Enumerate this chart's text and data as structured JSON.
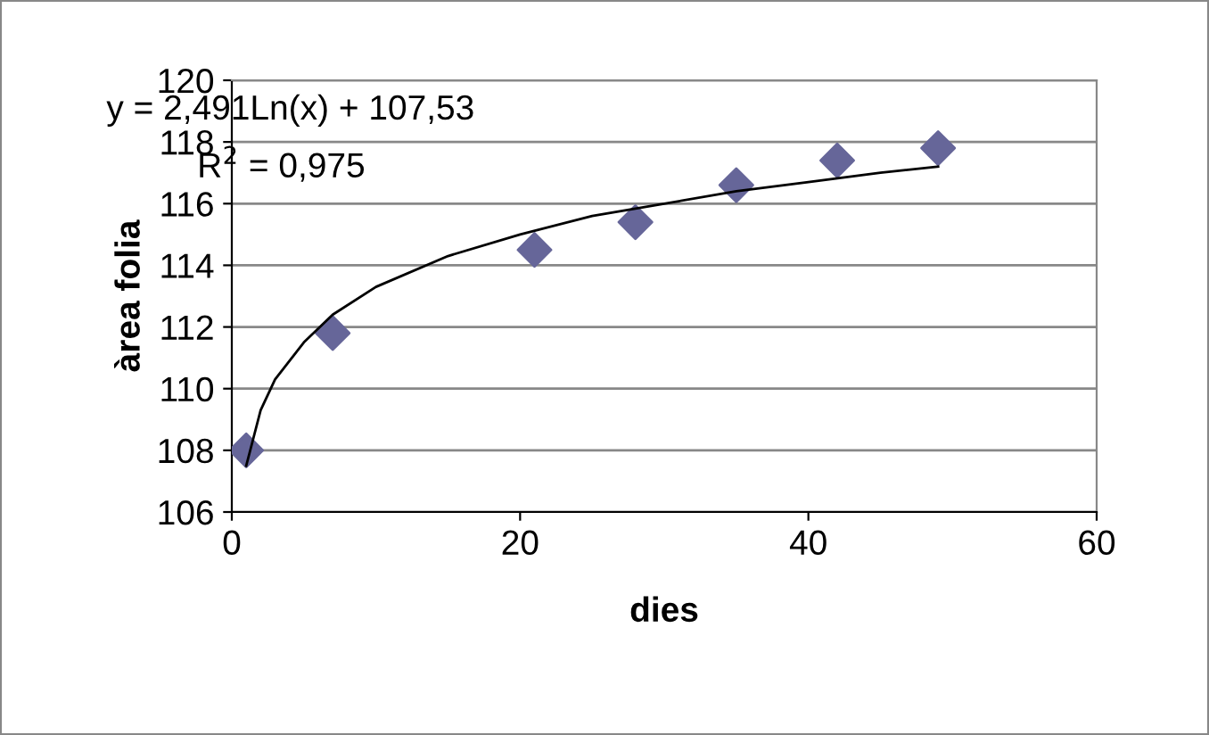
{
  "chart_data": {
    "type": "scatter",
    "xlabel": "dies",
    "ylabel": "àrea folia",
    "xlim": [
      0,
      60
    ],
    "xticks": [
      0,
      20,
      40,
      60
    ],
    "ylim": [
      106,
      120
    ],
    "yticks": [
      106,
      108,
      110,
      112,
      114,
      116,
      118,
      120
    ],
    "grid": "y",
    "legend": false,
    "marker": "diamond",
    "annotations": [
      "y = 2,491Ln(x) + 107,53",
      "R$^{2}$ = 0,975"
    ],
    "series": [
      {
        "color": "#666699",
        "x": [
          1,
          7,
          21,
          28,
          35,
          42,
          49
        ],
        "values": [
          108,
          111.8,
          114.5,
          115.4,
          116.6,
          117.4,
          117.8
        ]
      },
      {
        "type": "line",
        "color": "#000000",
        "marker": "none",
        "line_style": "solid",
        "x": [
          1,
          2,
          3,
          5,
          7,
          10,
          15,
          20,
          25,
          30,
          35,
          40,
          45,
          49
        ],
        "values": [
          107.5,
          109.3,
          110.3,
          111.5,
          112.4,
          113.3,
          114.3,
          115.0,
          115.6,
          116.0,
          116.4,
          116.7,
          117.0,
          117.2
        ]
      }
    ]
  }
}
